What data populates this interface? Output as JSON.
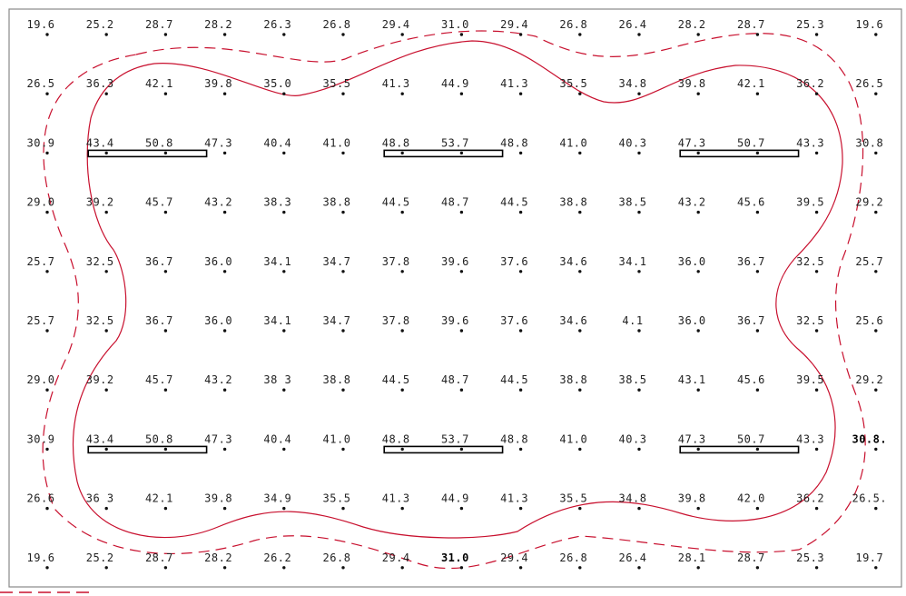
{
  "colors": {
    "contour": "#c8102e",
    "fixture_outline": "#000000",
    "text": "#222222"
  },
  "grid": {
    "rows": [
      [
        "19.6",
        "25.2",
        "28.7",
        "28.2",
        "26.3",
        "26.8",
        "29.4",
        "31.0",
        "29.4",
        "26.8",
        "26.4",
        "28.2",
        "28.7",
        "25.3",
        "19.6"
      ],
      [
        "26.5",
        "36.3",
        "42.1",
        "39.8",
        "35.0",
        "35.5",
        "41.3",
        "44.9",
        "41.3",
        "35.5",
        "34.8",
        "39.8",
        "42.1",
        "36.2",
        "26.5"
      ],
      [
        "30.9",
        "43.4",
        "50.8",
        "47.3",
        "40.4",
        "41.0",
        "48.8",
        "53.7",
        "48.8",
        "41.0",
        "40.3",
        "47.3",
        "50.7",
        "43.3",
        "30.8"
      ],
      [
        "29.0",
        "39.2",
        "45.7",
        "43.2",
        "38.3",
        "38.8",
        "44.5",
        "48.7",
        "44.5",
        "38.8",
        "38.5",
        "43.2",
        "45.6",
        "39.5",
        "29.2"
      ],
      [
        "25.7",
        "32.5",
        "36.7",
        "36.0",
        "34.1",
        "34.7",
        "37.8",
        "39.6",
        "37.6",
        "34.6",
        "34.1",
        "36.0",
        "36.7",
        "32.5",
        "25.7"
      ],
      [
        "25.7",
        "32.5",
        "36.7",
        "36.0",
        "34.1",
        "34.7",
        "37.8",
        "39.6",
        "37.6",
        "34.6",
        "4.1",
        "36.0",
        "36.7",
        "32.5",
        "25.6"
      ],
      [
        "29.0",
        "39.2",
        "45.7",
        "43.2",
        "38 3",
        "38.8",
        "44.5",
        "48.7",
        "44.5",
        "38.8",
        "38.5",
        "43.1",
        "45.6",
        "39.5",
        "29.2"
      ],
      [
        "30.9",
        "43.4",
        "50.8",
        "47.3",
        "40.4",
        "41.0",
        "48.8",
        "53.7",
        "48.8",
        "41.0",
        "40.3",
        "47.3",
        "50.7",
        "43.3",
        "30.8."
      ],
      [
        "26.6",
        "36 3",
        "42.1",
        "39.8",
        "34.9",
        "35.5",
        "41.3",
        "44.9",
        "41.3",
        "35.5",
        "34.8",
        "39.8",
        "42.0",
        "36.2",
        "26.5."
      ],
      [
        "19.6",
        "25.2",
        "28.7",
        "28.2",
        "26.2",
        "26.8",
        "29.4",
        "31.0",
        "29.4",
        "26.8",
        "26.4",
        "28.1",
        "28.7",
        "25.3",
        "19.7"
      ]
    ],
    "emphasized": [
      {
        "row": 7,
        "col": 14
      },
      {
        "row": 9,
        "col": 7
      }
    ]
  },
  "fixtures": [
    {
      "name": "fixture-top-left",
      "row": 2
    },
    {
      "name": "fixture-top-center",
      "row": 2
    },
    {
      "name": "fixture-top-right",
      "row": 2
    },
    {
      "name": "fixture-bottom-left",
      "row": 7
    },
    {
      "name": "fixture-bottom-center",
      "row": 7
    },
    {
      "name": "fixture-bottom-right",
      "row": 7
    }
  ],
  "contours": [
    {
      "name": "inner-contour",
      "style": "solid"
    },
    {
      "name": "outer-contour",
      "style": "dashed"
    }
  ],
  "legend": {
    "style": "dashed"
  }
}
